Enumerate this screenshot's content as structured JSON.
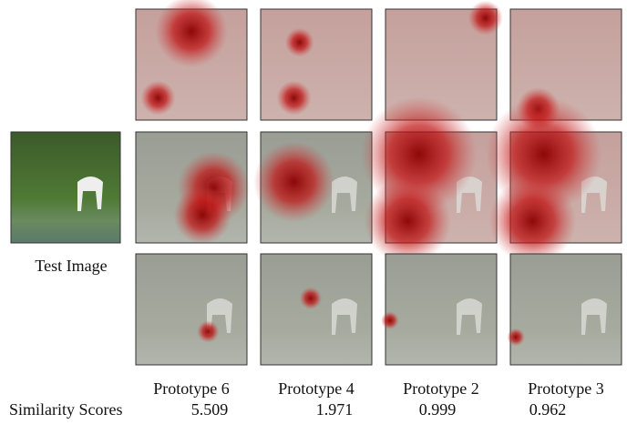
{
  "figure": {
    "test_image_label": "Test Image",
    "scores_label": "Similarity Scores",
    "prototypes": [
      {
        "label": "Prototype 6",
        "score": "5.509"
      },
      {
        "label": "Prototype 4",
        "score": "1.971"
      },
      {
        "label": "Prototype 2",
        "score": "0.999"
      },
      {
        "label": "Prototype 3",
        "score": "0.962"
      }
    ]
  }
}
